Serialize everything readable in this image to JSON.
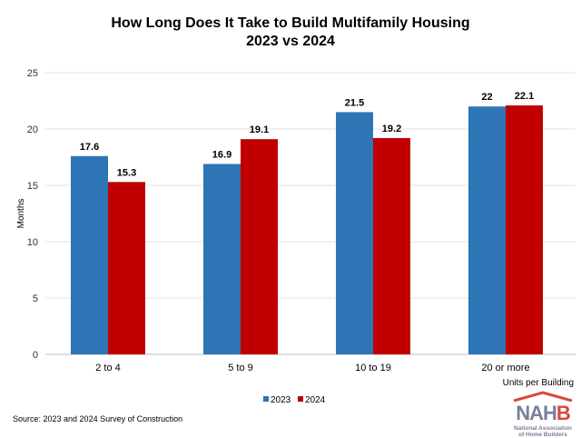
{
  "chart_data": {
    "type": "bar",
    "title": "How Long Does It Take to Build Multifamily Housing",
    "subtitle": "2023 vs 2024",
    "xlabel": "Units per Building",
    "ylabel": "Months",
    "categories": [
      "2 to 4",
      "5 to 9",
      "10 to 19",
      "20 or more"
    ],
    "series": [
      {
        "name": "2023",
        "values": [
          17.6,
          16.9,
          21.5,
          22
        ],
        "color": "#2e75b6"
      },
      {
        "name": "2024",
        "values": [
          15.3,
          19.1,
          19.2,
          22.1
        ],
        "color": "#c00000"
      }
    ],
    "ylim": [
      0,
      25
    ],
    "yticks": [
      0,
      5,
      10,
      15,
      20,
      25
    ],
    "grid": true,
    "legend": "bottom"
  },
  "source": "Source: 2023 and 2024 Survey of Construction",
  "logo": {
    "text": "NAHB",
    "subtitle": "National Association of Home Builders"
  }
}
